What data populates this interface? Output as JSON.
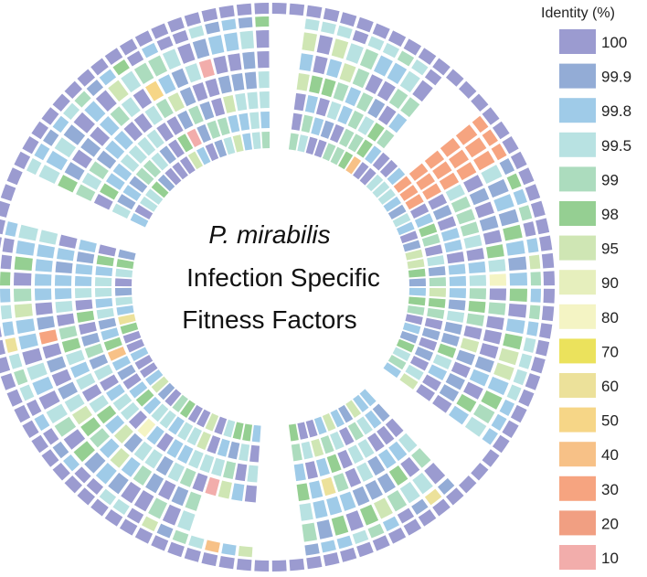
{
  "chart_data": {
    "type": "circular-heatmap",
    "title_line1": "P. mirabilis",
    "title_line2": "Infection Specific",
    "title_line3": "Fitness Factors",
    "legend_title": "Identity (%)",
    "legend": [
      {
        "label": "100",
        "value": 100,
        "color": "#9b9bd0"
      },
      {
        "label": "99.9",
        "value": 99.9,
        "color": "#93acd6"
      },
      {
        "label": "99.8",
        "value": 99.8,
        "color": "#9fcbe8"
      },
      {
        "label": "99.5",
        "value": 99.5,
        "color": "#b8e2e2"
      },
      {
        "label": "99",
        "value": 99,
        "color": "#acdcbe"
      },
      {
        "label": "98",
        "value": 98,
        "color": "#95cf92"
      },
      {
        "label": "95",
        "value": 95,
        "color": "#cfe6b4"
      },
      {
        "label": "90",
        "value": 90,
        "color": "#e6efbd"
      },
      {
        "label": "80",
        "value": 80,
        "color": "#f4f4c4"
      },
      {
        "label": "70",
        "value": 70,
        "color": "#ebe25c"
      },
      {
        "label": "60",
        "value": 60,
        "color": "#ece19a"
      },
      {
        "label": "50",
        "value": 50,
        "color": "#f6d687"
      },
      {
        "label": "40",
        "value": 40,
        "color": "#f7c187"
      },
      {
        "label": "30",
        "value": 30,
        "color": "#f6a480"
      },
      {
        "label": "20",
        "value": 20,
        "color": "#f19f82"
      },
      {
        "label": "10",
        "value": 10,
        "color": "#f2adab"
      }
    ],
    "rings": 8,
    "segments": 100,
    "outer_ring_identity": 100,
    "gaps": [
      {
        "segment_start": 0,
        "segment_end": 1,
        "rings_missing": [
          1,
          2,
          3,
          4,
          5,
          6,
          7
        ]
      },
      {
        "segment_start": 11,
        "segment_end": 13,
        "rings_missing": [
          1,
          2,
          3,
          4,
          5
        ]
      },
      {
        "segment_start": 35,
        "segment_end": 37,
        "rings_missing": [
          1,
          2,
          3,
          4,
          5,
          6,
          7
        ]
      },
      {
        "segment_start": 48,
        "segment_end": 50,
        "rings_missing": [
          1,
          2,
          3,
          4,
          5,
          6,
          7
        ]
      },
      {
        "segment_start": 51,
        "segment_end": 54,
        "rings_missing": [
          2,
          3
        ]
      },
      {
        "segment_start": 79,
        "segment_end": 81,
        "rings_missing": [
          1,
          2,
          3,
          4,
          5,
          6,
          7
        ]
      }
    ],
    "identity_values_present": [
      100,
      99.9,
      99.8,
      99.5,
      99,
      98,
      95,
      90,
      80,
      60,
      50,
      40,
      30,
      10
    ]
  }
}
